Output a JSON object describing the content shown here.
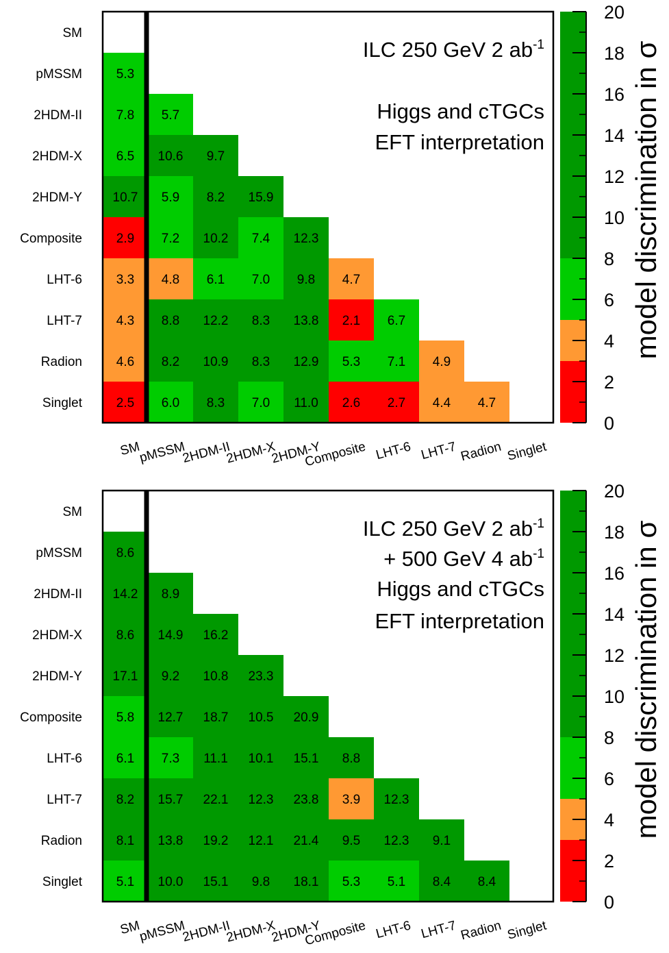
{
  "chart_data": [
    {
      "type": "heatmap",
      "models": [
        "SM",
        "pMSSM",
        "2HDM-II",
        "2HDM-X",
        "2HDM-Y",
        "Composite",
        "LHT-6",
        "LHT-7",
        "Radion",
        "Singlet"
      ],
      "values": [
        [
          null,
          null,
          null,
          null,
          null,
          null,
          null,
          null,
          null,
          null
        ],
        [
          5.3,
          null,
          null,
          null,
          null,
          null,
          null,
          null,
          null,
          null
        ],
        [
          7.8,
          5.7,
          null,
          null,
          null,
          null,
          null,
          null,
          null,
          null
        ],
        [
          6.5,
          10.6,
          9.7,
          null,
          null,
          null,
          null,
          null,
          null,
          null
        ],
        [
          10.7,
          5.9,
          8.2,
          15.9,
          null,
          null,
          null,
          null,
          null,
          null
        ],
        [
          2.9,
          7.2,
          10.2,
          7.4,
          12.3,
          null,
          null,
          null,
          null,
          null
        ],
        [
          3.3,
          4.8,
          6.1,
          7.0,
          9.8,
          4.7,
          null,
          null,
          null,
          null
        ],
        [
          4.3,
          8.8,
          12.2,
          8.3,
          13.8,
          2.1,
          6.7,
          null,
          null,
          null
        ],
        [
          4.6,
          8.2,
          10.9,
          8.3,
          12.9,
          5.3,
          7.1,
          4.9,
          null,
          null
        ],
        [
          2.5,
          6.0,
          8.3,
          7.0,
          11.0,
          2.6,
          2.7,
          4.4,
          4.7,
          null
        ]
      ],
      "labels": [
        [
          "",
          "",
          "",
          "",
          "",
          "",
          "",
          "",
          "",
          ""
        ],
        [
          "5.3",
          "",
          "",
          "",
          "",
          "",
          "",
          "",
          "",
          ""
        ],
        [
          "7.8",
          "5.7",
          "",
          "",
          "",
          "",
          "",
          "",
          "",
          ""
        ],
        [
          "6.5",
          "10.6",
          "9.7",
          "",
          "",
          "",
          "",
          "",
          "",
          ""
        ],
        [
          "10.7",
          "5.9",
          "8.2",
          "15.9",
          "",
          "",
          "",
          "",
          "",
          ""
        ],
        [
          "2.9",
          "7.2",
          "10.2",
          "7.4",
          "12.3",
          "",
          "",
          "",
          "",
          ""
        ],
        [
          "3.3",
          "4.8",
          "6.1",
          "7.0",
          "9.8",
          "4.7",
          "",
          "",
          "",
          ""
        ],
        [
          "4.3",
          "8.8",
          "12.2",
          "8.3",
          "13.8",
          "2.1",
          "6.7",
          "",
          "",
          ""
        ],
        [
          "4.6",
          "8.2",
          "10.9",
          "8.3",
          "12.9",
          "5.3",
          "7.1",
          "4.9",
          "",
          ""
        ],
        [
          "2.5",
          "6.0",
          "8.3",
          "7.0",
          "11.0",
          "2.6",
          "2.7",
          "4.4",
          "4.7",
          ""
        ]
      ],
      "annotation_lines": [
        {
          "text": "ILC 250 GeV 2 ab",
          "sup": "-1"
        },
        {
          "text": "Higgs and cTGCs",
          "sup": ""
        },
        {
          "text": "EFT interpretation",
          "sup": ""
        }
      ],
      "colorbar": {
        "label": "model discrimination in σ",
        "range": [
          0,
          20
        ],
        "ticks": [
          "0",
          "2",
          "4",
          "6",
          "8",
          "10",
          "12",
          "14",
          "16",
          "18",
          "20"
        ],
        "bins": [
          {
            "from": 0,
            "to": 3,
            "color": "#ff0000"
          },
          {
            "from": 3,
            "to": 5,
            "color": "#ff9933"
          },
          {
            "from": 5,
            "to": 8,
            "color": "#00cc00"
          },
          {
            "from": 8,
            "to": 20,
            "color": "#009900"
          }
        ]
      }
    },
    {
      "type": "heatmap",
      "models": [
        "SM",
        "pMSSM",
        "2HDM-II",
        "2HDM-X",
        "2HDM-Y",
        "Composite",
        "LHT-6",
        "LHT-7",
        "Radion",
        "Singlet"
      ],
      "values": [
        [
          null,
          null,
          null,
          null,
          null,
          null,
          null,
          null,
          null,
          null
        ],
        [
          8.6,
          null,
          null,
          null,
          null,
          null,
          null,
          null,
          null,
          null
        ],
        [
          14.2,
          8.9,
          null,
          null,
          null,
          null,
          null,
          null,
          null,
          null
        ],
        [
          8.6,
          14.9,
          16.2,
          null,
          null,
          null,
          null,
          null,
          null,
          null
        ],
        [
          17.1,
          9.2,
          10.8,
          23.3,
          null,
          null,
          null,
          null,
          null,
          null
        ],
        [
          5.8,
          12.7,
          18.7,
          10.5,
          20.9,
          null,
          null,
          null,
          null,
          null
        ],
        [
          6.1,
          7.3,
          11.1,
          10.1,
          15.1,
          8.8,
          null,
          null,
          null,
          null
        ],
        [
          8.2,
          15.7,
          22.1,
          12.3,
          23.8,
          3.9,
          12.3,
          null,
          null,
          null
        ],
        [
          8.1,
          13.8,
          19.2,
          12.1,
          21.4,
          9.5,
          12.3,
          9.1,
          null,
          null
        ],
        [
          5.1,
          10.0,
          15.1,
          9.8,
          18.1,
          5.3,
          5.1,
          8.4,
          8.4,
          null
        ]
      ],
      "labels": [
        [
          "",
          "",
          "",
          "",
          "",
          "",
          "",
          "",
          "",
          ""
        ],
        [
          "8.6",
          "",
          "",
          "",
          "",
          "",
          "",
          "",
          "",
          ""
        ],
        [
          "14.2",
          "8.9",
          "",
          "",
          "",
          "",
          "",
          "",
          "",
          ""
        ],
        [
          "8.6",
          "14.9",
          "16.2",
          "",
          "",
          "",
          "",
          "",
          "",
          ""
        ],
        [
          "17.1",
          "9.2",
          "10.8",
          "23.3",
          "",
          "",
          "",
          "",
          "",
          ""
        ],
        [
          "5.8",
          "12.7",
          "18.7",
          "10.5",
          "20.9",
          "",
          "",
          "",
          "",
          ""
        ],
        [
          "6.1",
          "7.3",
          "11.1",
          "10.1",
          "15.1",
          "8.8",
          "",
          "",
          "",
          ""
        ],
        [
          "8.2",
          "15.7",
          "22.1",
          "12.3",
          "23.8",
          "3.9",
          "12.3",
          "",
          "",
          ""
        ],
        [
          "8.1",
          "13.8",
          "19.2",
          "12.1",
          "21.4",
          "9.5",
          "12.3",
          "9.1",
          "",
          ""
        ],
        [
          "5.1",
          "10.0",
          "15.1",
          "9.8",
          "18.1",
          "5.3",
          "5.1",
          "8.4",
          "8.4",
          ""
        ]
      ],
      "annotation_lines": [
        {
          "text": "ILC 250 GeV 2 ab",
          "sup": "-1"
        },
        {
          "text": "+ 500 GeV 4 ab",
          "sup": "-1"
        },
        {
          "text": "Higgs and cTGCs",
          "sup": ""
        },
        {
          "text": "EFT interpretation",
          "sup": ""
        }
      ],
      "colorbar": {
        "label": "model discrimination in σ",
        "range": [
          0,
          20
        ],
        "ticks": [
          "0",
          "2",
          "4",
          "6",
          "8",
          "10",
          "12",
          "14",
          "16",
          "18",
          "20"
        ],
        "bins": [
          {
            "from": 0,
            "to": 3,
            "color": "#ff0000"
          },
          {
            "from": 3,
            "to": 5,
            "color": "#ff9933"
          },
          {
            "from": 5,
            "to": 8,
            "color": "#00cc00"
          },
          {
            "from": 8,
            "to": 20,
            "color": "#009900"
          }
        ]
      }
    }
  ]
}
